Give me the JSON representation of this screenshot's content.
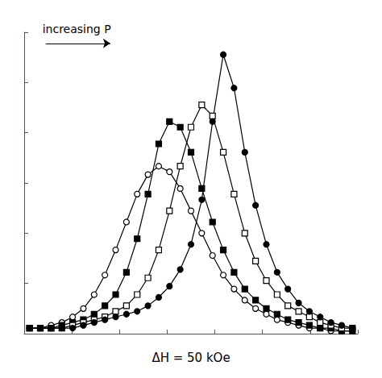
{
  "chart_data": {
    "type": "line",
    "title": "ΔH = 50 kOe",
    "background_color": "#ffffff",
    "annotations": [
      {
        "text": "increasing P",
        "x": 1.2,
        "y": 1.07,
        "arrow_from": [
          1.5,
          1.04
        ],
        "arrow_to": [
          7.5,
          1.04
        ]
      }
    ],
    "x": [
      0,
      1,
      2,
      3,
      4,
      5,
      6,
      7,
      8,
      9,
      10,
      11,
      12,
      13,
      14,
      15,
      16,
      17,
      18,
      19,
      20,
      21,
      22,
      23,
      24,
      25,
      26,
      27,
      28,
      29,
      30
    ],
    "series": [
      {
        "color": "#000000",
        "marker": "open_circle",
        "values": [
          0.02,
          0.02,
          0.03,
          0.04,
          0.06,
          0.09,
          0.14,
          0.21,
          0.3,
          0.4,
          0.5,
          0.57,
          0.6,
          0.58,
          0.52,
          0.44,
          0.36,
          0.28,
          0.21,
          0.16,
          0.12,
          0.09,
          0.07,
          0.05,
          0.04,
          0.03,
          0.02,
          0.02,
          0.01,
          0.01,
          0.01
        ]
      },
      {
        "color": "#000000",
        "marker": "filled_square",
        "values": [
          0.02,
          0.02,
          0.02,
          0.03,
          0.04,
          0.05,
          0.07,
          0.1,
          0.14,
          0.22,
          0.34,
          0.5,
          0.68,
          0.76,
          0.74,
          0.65,
          0.52,
          0.4,
          0.3,
          0.22,
          0.16,
          0.12,
          0.09,
          0.07,
          0.05,
          0.04,
          0.03,
          0.02,
          0.02,
          0.01,
          0.01
        ]
      },
      {
        "color": "#000000",
        "marker": "open_square",
        "values": [
          0.02,
          0.02,
          0.02,
          0.02,
          0.03,
          0.04,
          0.05,
          0.06,
          0.08,
          0.1,
          0.14,
          0.2,
          0.3,
          0.44,
          0.6,
          0.74,
          0.82,
          0.78,
          0.65,
          0.5,
          0.36,
          0.26,
          0.19,
          0.14,
          0.1,
          0.08,
          0.06,
          0.04,
          0.03,
          0.02,
          0.02
        ]
      },
      {
        "color": "#000000",
        "marker": "filled_circle",
        "values": [
          0.02,
          0.02,
          0.02,
          0.02,
          0.02,
          0.03,
          0.04,
          0.05,
          0.06,
          0.07,
          0.08,
          0.1,
          0.13,
          0.17,
          0.23,
          0.32,
          0.48,
          0.76,
          1.0,
          0.88,
          0.65,
          0.46,
          0.32,
          0.22,
          0.16,
          0.11,
          0.08,
          0.06,
          0.04,
          0.03,
          0.02
        ]
      }
    ],
    "xlim": [
      -0.5,
      30.5
    ],
    "ylim": [
      0.0,
      1.08
    ],
    "xticks": [
      -0.5,
      3.928571428571429,
      8.357142857142858,
      12.785714285714286,
      17.214285714285715,
      21.642857142857142,
      26.071428571428573,
      30.5
    ],
    "yticks": [
      0.0,
      0.18,
      0.36,
      0.54,
      0.72,
      0.9,
      1.08
    ],
    "tick_labels": false,
    "grid": false
  }
}
